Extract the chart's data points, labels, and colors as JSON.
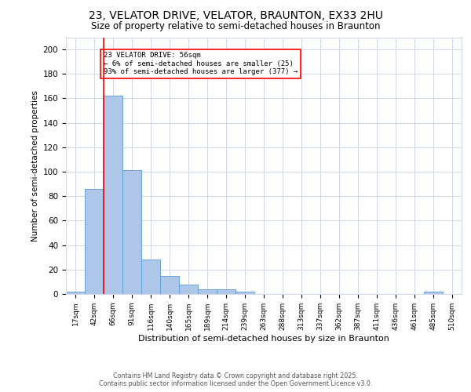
{
  "title1": "23, VELATOR DRIVE, VELATOR, BRAUNTON, EX33 2HU",
  "title2": "Size of property relative to semi-detached houses in Braunton",
  "xlabel": "Distribution of semi-detached houses by size in Braunton",
  "ylabel": "Number of semi-detached properties",
  "categories": [
    "17sqm",
    "42sqm",
    "66sqm",
    "91sqm",
    "116sqm",
    "140sqm",
    "165sqm",
    "189sqm",
    "214sqm",
    "239sqm",
    "263sqm",
    "288sqm",
    "313sqm",
    "337sqm",
    "362sqm",
    "387sqm",
    "411sqm",
    "436sqm",
    "461sqm",
    "485sqm",
    "510sqm"
  ],
  "bar_values": [
    2,
    86,
    162,
    101,
    28,
    15,
    8,
    4,
    4,
    2,
    0,
    0,
    0,
    0,
    0,
    0,
    0,
    0,
    0,
    2,
    0
  ],
  "bar_color": "#aec6e8",
  "bar_edge_color": "#5b9bd5",
  "ylim": [
    0,
    210
  ],
  "yticks": [
    0,
    20,
    40,
    60,
    80,
    100,
    120,
    140,
    160,
    180,
    200
  ],
  "vline_x": 1.5,
  "vline_color": "red",
  "annotation_title": "23 VELATOR DRIVE: 56sqm",
  "annotation_line1": "← 6% of semi-detached houses are smaller (25)",
  "annotation_line2": "93% of semi-detached houses are larger (377) →",
  "annotation_box_color": "red",
  "annotation_text_color": "black",
  "bg_color": "#ffffff",
  "grid_color": "#d0d8e8",
  "title1_fontsize": 10,
  "title2_fontsize": 8.5,
  "footnote1": "Contains HM Land Registry data © Crown copyright and database right 2025.",
  "footnote2": "Contains public sector information licensed under the Open Government Licence v3.0."
}
